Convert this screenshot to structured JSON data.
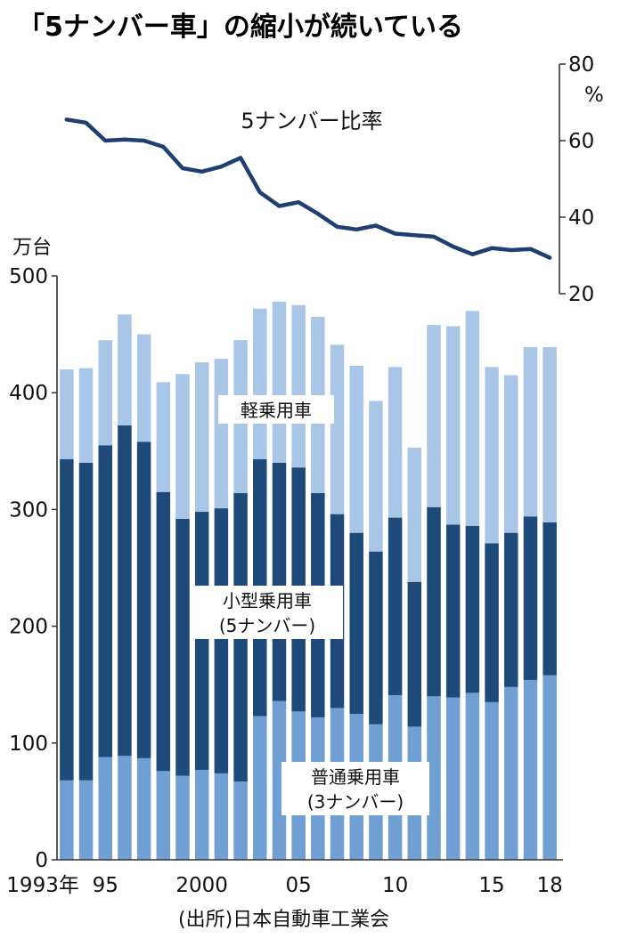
{
  "title": "「5ナンバー車」の縮小が続いている",
  "source": "(出所)日本自動車工業会",
  "chart_data": [
    {
      "type": "line",
      "series": [
        {
          "name": "5ナンバー比率",
          "values": [
            65.5,
            64.7,
            60.0,
            60.3,
            60.0,
            58.4,
            52.8,
            51.9,
            53.2,
            55.5,
            46.5,
            42.9,
            43.9,
            40.9,
            37.5,
            36.8,
            37.8,
            35.7,
            35.3,
            34.9,
            32.3,
            30.3,
            31.9,
            31.4,
            31.7,
            29.4
          ]
        }
      ],
      "x": [
        1993,
        1994,
        1995,
        1996,
        1997,
        1998,
        1999,
        2000,
        2001,
        2002,
        2003,
        2004,
        2005,
        2006,
        2007,
        2008,
        2009,
        2010,
        2011,
        2012,
        2013,
        2014,
        2015,
        2016,
        2017,
        2018
      ],
      "ylim": [
        20,
        80
      ],
      "y_ticks": [
        "80",
        "60",
        "40",
        "20"
      ],
      "y_unit": "%",
      "axis_position": "right"
    },
    {
      "type": "bar",
      "stacked": true,
      "x": [
        1993,
        1994,
        1995,
        1996,
        1997,
        1998,
        1999,
        2000,
        2001,
        2002,
        2003,
        2004,
        2005,
        2006,
        2007,
        2008,
        2009,
        2010,
        2011,
        2012,
        2013,
        2014,
        2015,
        2016,
        2017,
        2018
      ],
      "x_tick_labels": [
        {
          "index": 0,
          "label": "1993年"
        },
        {
          "index": 2,
          "label": "95"
        },
        {
          "index": 7,
          "label": "2000"
        },
        {
          "index": 12,
          "label": "05"
        },
        {
          "index": 17,
          "label": "10"
        },
        {
          "index": 22,
          "label": "15"
        },
        {
          "index": 25,
          "label": "18"
        }
      ],
      "series": [
        {
          "name": "普通乗用車(3ナンバー)",
          "label_lines": [
            "普通乗用車",
            "(3ナンバー)"
          ],
          "color": "#6f9fd3",
          "values": [
            68,
            68,
            88,
            89,
            87,
            76,
            72,
            77,
            74,
            67,
            123,
            136,
            127,
            122,
            130,
            125,
            116,
            141,
            114,
            140,
            139,
            143,
            135,
            148,
            154,
            158
          ]
        },
        {
          "name": "小型乗用車(5ナンバー)",
          "label_lines": [
            "小型乗用車",
            "(5ナンバー)"
          ],
          "color": "#1e4a7a",
          "values": [
            275,
            272,
            267,
            283,
            271,
            239,
            220,
            221,
            227,
            247,
            220,
            204,
            209,
            192,
            166,
            155,
            148,
            152,
            124,
            162,
            148,
            143,
            136,
            132,
            140,
            131
          ]
        },
        {
          "name": "軽乗用車",
          "label_lines": [
            "軽乗用車"
          ],
          "color": "#a9c6e6",
          "values": [
            77,
            81,
            90,
            95,
            92,
            94,
            124,
            128,
            128,
            131,
            129,
            138,
            139,
            151,
            145,
            143,
            129,
            129,
            115,
            156,
            170,
            184,
            151,
            135,
            145,
            150
          ]
        }
      ],
      "ylim": [
        0,
        500
      ],
      "y_ticks": [
        "500",
        "400",
        "300",
        "200",
        "100",
        "0"
      ],
      "y_unit": "万台",
      "axis_position": "left"
    }
  ]
}
